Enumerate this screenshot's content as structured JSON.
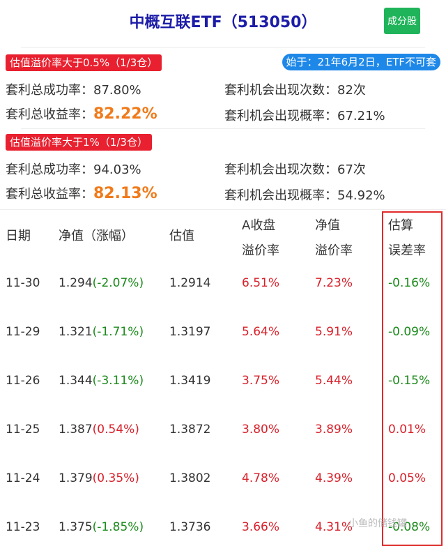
{
  "header": {
    "title": "中概互联ETF（513050）",
    "button": "成分股"
  },
  "since": "始于：21年6月2日，ETF不可套",
  "sections": [
    {
      "badge": "估值溢价率大于0.5%（1/3仓）",
      "success_label": "套利总成功率：",
      "success": "87.80%",
      "return_label": "套利总收益率：",
      "return": "82.22%",
      "count_label": "套利机会出现次数：",
      "count": "82次",
      "prob_label": "套利机会出现概率：",
      "prob": "67.21%"
    },
    {
      "badge": "估值溢价率大于1%（1/3仓）",
      "success_label": "套利总成功率：",
      "success": "94.03%",
      "return_label": "套利总收益率：",
      "return": "82.13%",
      "count_label": "套利机会出现次数：",
      "count": "67次",
      "prob_label": "套利机会出现概率：",
      "prob": "54.92%"
    }
  ],
  "table": {
    "headers": [
      [
        "日期"
      ],
      [
        "净值（涨幅）"
      ],
      [
        "估值"
      ],
      [
        "A收盘",
        "溢价率"
      ],
      [
        "净值",
        "溢价率"
      ],
      [
        "估算",
        "误差率"
      ]
    ],
    "rows": [
      {
        "date": "11-30",
        "nav": "1.294",
        "chg": "(-2.07%)",
        "chg_dir": "down",
        "est": "1.2914",
        "a_prem": "6.51%",
        "nav_prem": "7.23%",
        "err": "-0.16%",
        "err_dir": "down"
      },
      {
        "date": "11-29",
        "nav": "1.321",
        "chg": "(-1.71%)",
        "chg_dir": "down",
        "est": "1.3197",
        "a_prem": "5.64%",
        "nav_prem": "5.91%",
        "err": "-0.09%",
        "err_dir": "down"
      },
      {
        "date": "11-26",
        "nav": "1.344",
        "chg": "(-3.11%)",
        "chg_dir": "down",
        "est": "1.3419",
        "a_prem": "3.75%",
        "nav_prem": "5.44%",
        "err": "-0.15%",
        "err_dir": "down"
      },
      {
        "date": "11-25",
        "nav": "1.387",
        "chg": "(0.54%)",
        "chg_dir": "up",
        "est": "1.3872",
        "a_prem": "3.80%",
        "nav_prem": "3.89%",
        "err": "0.01%",
        "err_dir": "up"
      },
      {
        "date": "11-24",
        "nav": "1.379",
        "chg": "(0.35%)",
        "chg_dir": "up",
        "est": "1.3802",
        "a_prem": "4.78%",
        "nav_prem": "4.39%",
        "err": "0.05%",
        "err_dir": "up"
      },
      {
        "date": "11-23",
        "nav": "1.375",
        "chg": "(-1.85%)",
        "chg_dir": "down",
        "est": "1.3736",
        "a_prem": "3.66%",
        "nav_prem": "4.31%",
        "err": "-0.08%",
        "err_dir": "down"
      }
    ]
  },
  "watermark": "小鱼的储钱罐",
  "colors": {
    "title": "#1c1ca8",
    "button": "#1fb45a",
    "badge": "#e8202f",
    "pill": "#1e88e8",
    "highlight": "#f07a1a",
    "up": "#d8202a",
    "down": "#1b8a1b"
  }
}
